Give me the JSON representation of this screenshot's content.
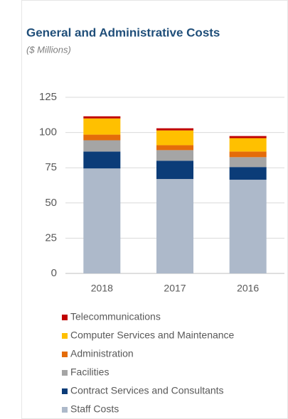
{
  "chart_data": {
    "type": "stacked_bar",
    "title": "General and Administrative Costs",
    "subtitle": "($ Millions)",
    "categories": [
      "2018",
      "2017",
      "2016"
    ],
    "series": [
      {
        "name": "Staff Costs",
        "color": "#adb9ca",
        "values": [
          74.5,
          67,
          66.5
        ]
      },
      {
        "name": "Contract Services and Consultants",
        "color": "#0b3c78",
        "values": [
          12,
          13,
          9
        ]
      },
      {
        "name": "Facilities",
        "color": "#a5a5a5",
        "values": [
          8,
          7.5,
          7
        ]
      },
      {
        "name": "Administration",
        "color": "#e46c0a",
        "values": [
          4,
          3.5,
          4
        ]
      },
      {
        "name": "Computer Services and Maintenance",
        "color": "#ffc000",
        "values": [
          11.5,
          10.5,
          9.5
        ]
      },
      {
        "name": "Telecommunications",
        "color": "#c00000",
        "values": [
          1.5,
          1.5,
          1.5
        ]
      }
    ],
    "ylim": [
      0,
      125
    ],
    "yticks": [
      0,
      25,
      50,
      75,
      100,
      125
    ],
    "grid": true
  }
}
